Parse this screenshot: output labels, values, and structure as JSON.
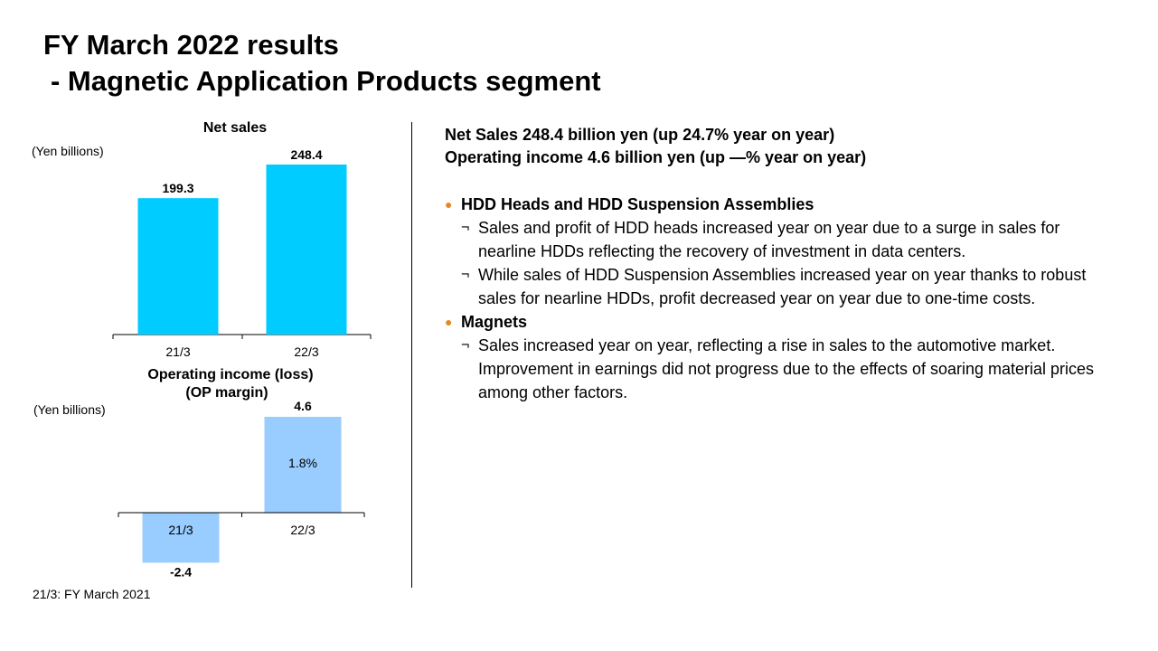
{
  "title": {
    "line1": "FY March 2022 results",
    "line2": " - Magnetic Application Products segment"
  },
  "colors": {
    "net_sales_bar": "#00ccff",
    "op_income_bar": "#99ccff",
    "bullet_dot": "#e6862b"
  },
  "chart_data": [
    {
      "type": "bar",
      "title": "Net sales",
      "unit_label": "(Yen billions)",
      "categories": [
        "21/3",
        "22/3"
      ],
      "values": [
        199.3,
        248.4
      ],
      "value_labels": [
        "199.3",
        "248.4"
      ],
      "ylim": [
        0,
        260
      ],
      "grid": false,
      "legend": "none"
    },
    {
      "type": "bar",
      "title_line1": "Operating income (loss)",
      "title_line2": "(OP margin)",
      "unit_label": "(Yen billions)",
      "categories": [
        "21/3",
        "22/3"
      ],
      "values": [
        -2.4,
        4.6
      ],
      "value_labels": [
        "-2.4",
        "4.6"
      ],
      "op_margin_labels": [
        "",
        "1.8%"
      ],
      "ylim": [
        -2.6,
        5
      ],
      "grid": false,
      "legend": "none"
    }
  ],
  "summary": {
    "line1": "Net Sales 248.4 billion yen (up 24.7% year on year)",
    "line2": "Operating income 4.6 billion yen (up —% year on year)"
  },
  "sections": [
    {
      "bullet_icon": "circle-bullet-icon",
      "heading": "HDD Heads and HDD Suspension Assemblies",
      "items": [
        "Sales and profit of HDD heads increased year on year due to a surge in sales for nearline HDDs reflecting the recovery of investment in data centers.",
        "While sales of HDD Suspension Assemblies increased year on year thanks to robust sales for nearline HDDs, profit decreased year on year due to one-time costs."
      ]
    },
    {
      "bullet_icon": "circle-bullet-icon",
      "heading": "Magnets",
      "items": [
        "Sales increased year on year, reflecting a rise in sales to the automotive market. Improvement  in earnings did not progress due to the effects of soaring material prices among other factors."
      ]
    }
  ],
  "bullet_glyph": "¬",
  "section_glyph": "●",
  "footnote": "21/3: FY March 2021"
}
